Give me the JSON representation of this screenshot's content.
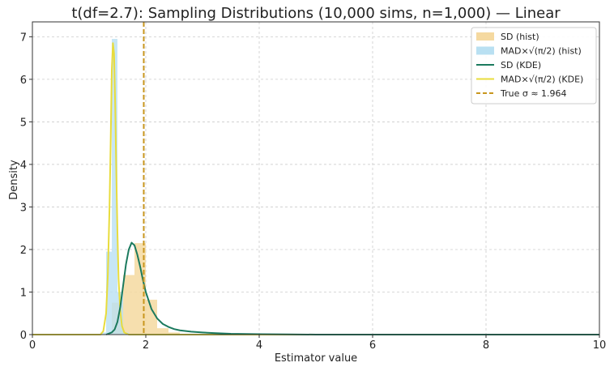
{
  "chart_data": {
    "type": "histogram+kde",
    "title": "t(df=2.7): Sampling Distributions (10,000 sims, n=1,000) — Linear",
    "xlabel": "Estimator value",
    "ylabel": "Density",
    "xlim": [
      0,
      10
    ],
    "ylim": [
      0,
      7.35
    ],
    "xticks": [
      0,
      2,
      4,
      6,
      8,
      10
    ],
    "yticks": [
      0,
      1,
      2,
      3,
      4,
      5,
      6,
      7
    ],
    "grid": true,
    "legend_position": "top-right",
    "colors": {
      "sd_hist": "#f5d9a0",
      "mad_hist": "#b9e0f2",
      "sd_kde": "#1b7a5e",
      "mad_kde": "#e8dc3c",
      "true_sigma": "#c8961e",
      "grid": "#cccccc"
    },
    "series": [
      {
        "name": "SD (hist)",
        "kind": "histogram",
        "bin_width": 0.2,
        "bins": [
          {
            "x0": 1.4,
            "density": 0.75
          },
          {
            "x0": 1.6,
            "density": 1.4
          },
          {
            "x0": 1.8,
            "density": 2.15
          },
          {
            "x0": 2.0,
            "density": 0.82
          },
          {
            "x0": 2.2,
            "density": 0.15
          },
          {
            "x0": 2.4,
            "density": 0.05
          },
          {
            "x0": 2.6,
            "density": 0.02
          }
        ]
      },
      {
        "name": "MAD×√(π/2) (hist)",
        "kind": "histogram",
        "bin_width": 0.1,
        "bins": [
          {
            "x0": 1.2,
            "density": 0.05
          },
          {
            "x0": 1.3,
            "density": 1.95
          },
          {
            "x0": 1.4,
            "density": 6.95
          },
          {
            "x0": 1.5,
            "density": 1.0
          },
          {
            "x0": 1.6,
            "density": 0.05
          }
        ]
      },
      {
        "name": "SD (KDE)",
        "kind": "line",
        "x": [
          1.3,
          1.4,
          1.45,
          1.5,
          1.55,
          1.6,
          1.65,
          1.7,
          1.75,
          1.8,
          1.85,
          1.9,
          1.95,
          2.0,
          2.1,
          2.2,
          2.3,
          2.4,
          2.5,
          2.6,
          2.8,
          3.0,
          3.2,
          3.5,
          4.0,
          4.5,
          5.0,
          6.0,
          8.0,
          10.0
        ],
        "y": [
          0.0,
          0.05,
          0.12,
          0.3,
          0.65,
          1.15,
          1.65,
          2.0,
          2.16,
          2.1,
          1.88,
          1.6,
          1.28,
          1.0,
          0.6,
          0.38,
          0.25,
          0.18,
          0.13,
          0.1,
          0.07,
          0.05,
          0.035,
          0.02,
          0.01,
          0.005,
          0.0,
          0.0,
          0.0,
          0.0
        ]
      },
      {
        "name": "MAD×√(π/2) (KDE)",
        "kind": "line",
        "x": [
          0.0,
          1.2,
          1.25,
          1.3,
          1.33,
          1.36,
          1.38,
          1.4,
          1.42,
          1.44,
          1.46,
          1.48,
          1.5,
          1.52,
          1.55,
          1.58,
          1.62,
          1.7,
          2.0,
          10.0
        ],
        "y": [
          0.0,
          0.0,
          0.08,
          0.5,
          1.4,
          3.0,
          4.5,
          6.2,
          6.85,
          6.6,
          5.4,
          3.8,
          2.4,
          1.3,
          0.55,
          0.2,
          0.05,
          0.0,
          0.0,
          0.0
        ]
      },
      {
        "name": "True σ ≈ 1.964",
        "kind": "vline",
        "x": 1.964
      }
    ]
  }
}
